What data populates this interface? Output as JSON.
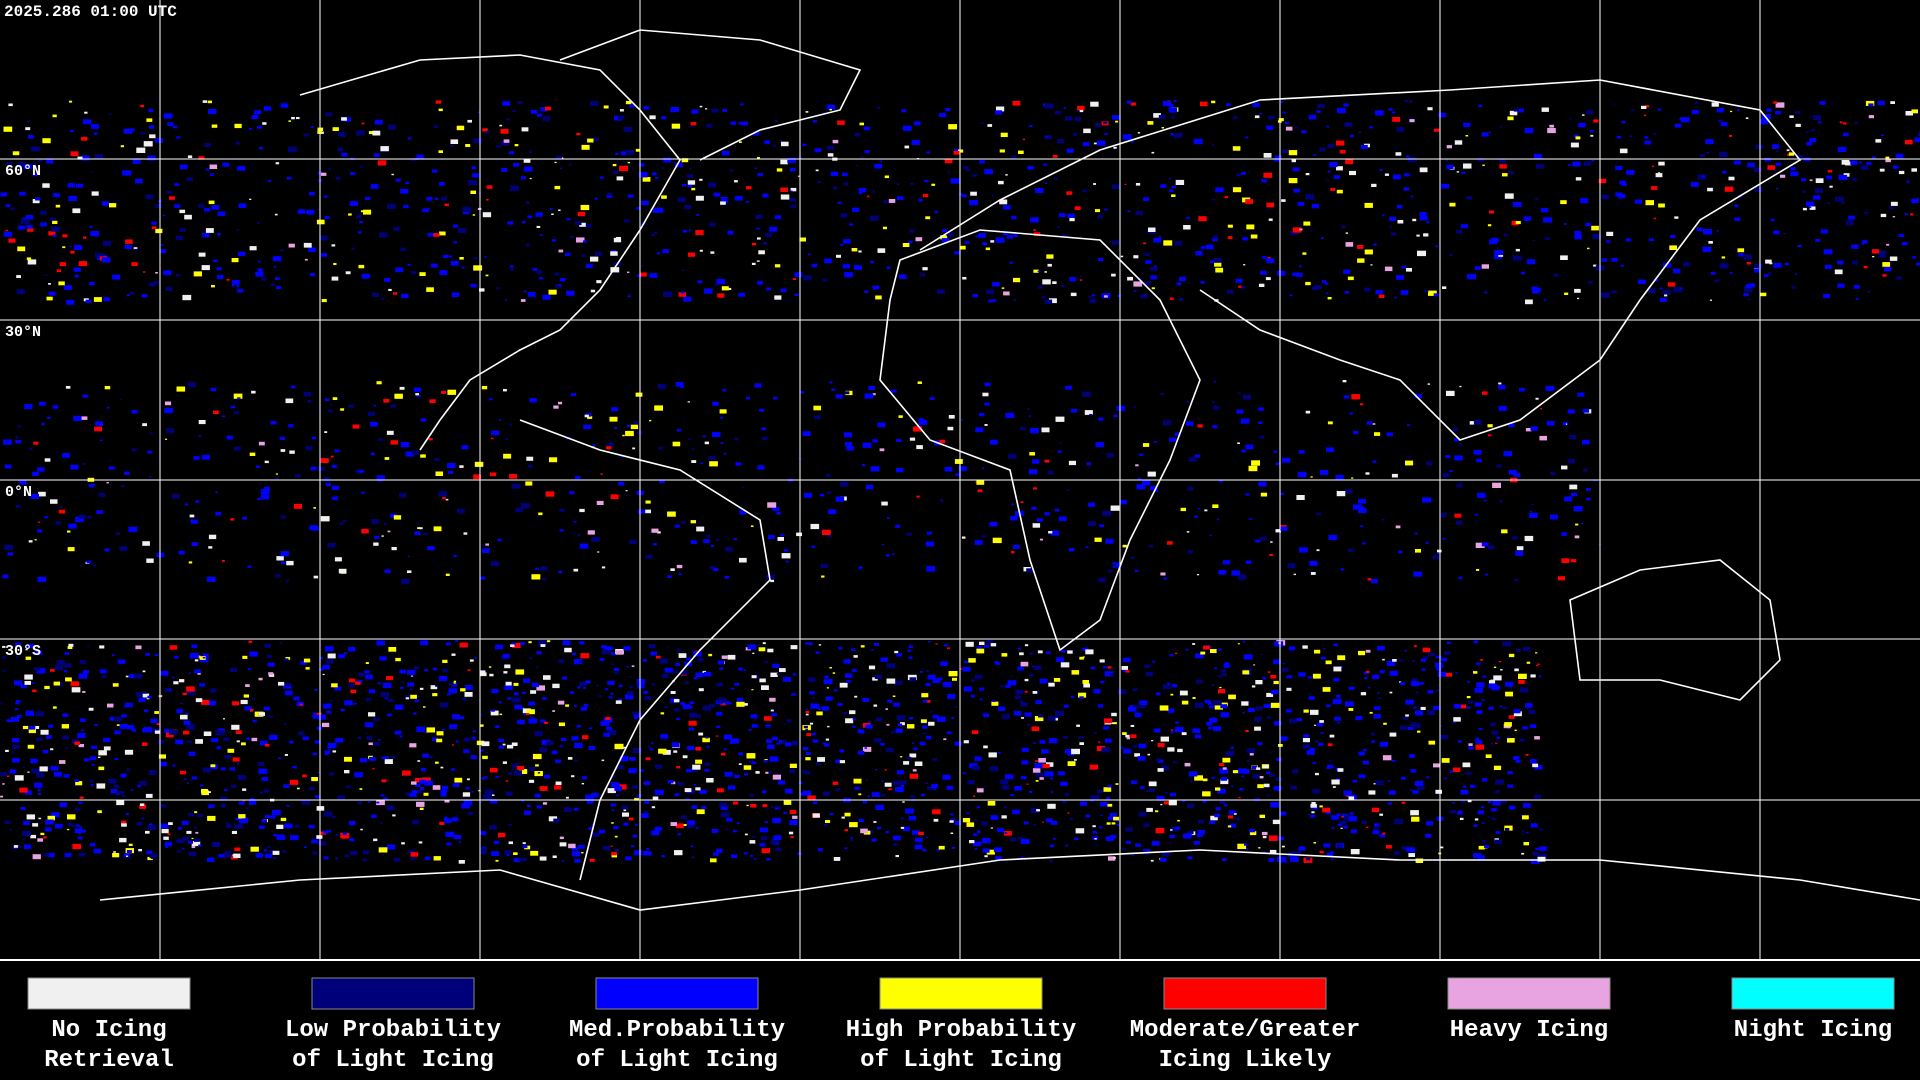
{
  "header": {
    "timestamp": "2025.286 01:00 UTC"
  },
  "map": {
    "lat_labels": [
      "60°N",
      "30°N",
      "0°N",
      "30°S"
    ]
  },
  "legend": {
    "items": [
      {
        "color": "#f0f0f0",
        "lines": [
          "No Icing",
          "Retrieval"
        ]
      },
      {
        "color": "#00007a",
        "lines": [
          "Low Probability",
          "of Light Icing"
        ]
      },
      {
        "color": "#0000ff",
        "lines": [
          "Med.Probability",
          "of Light Icing"
        ]
      },
      {
        "color": "#ffff00",
        "lines": [
          "High Probability",
          "of Light Icing"
        ]
      },
      {
        "color": "#ff0000",
        "lines": [
          "Moderate/Greater",
          "Icing Likely"
        ]
      },
      {
        "color": "#e8a4e0",
        "lines": [
          "Heavy Icing"
        ]
      },
      {
        "color": "#00ffff",
        "lines": [
          "Night Icing"
        ]
      }
    ]
  }
}
